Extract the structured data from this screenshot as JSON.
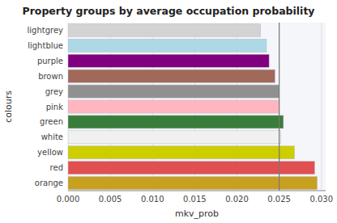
{
  "chart_data": {
    "type": "bar",
    "orientation": "horizontal",
    "title": "Property groups by average occupation probability",
    "xlabel": "mkv_prob",
    "ylabel": "colours",
    "categories": [
      "orange",
      "red",
      "yellow",
      "white",
      "green",
      "pink",
      "grey",
      "brown",
      "purple",
      "lightblue",
      "lightgrey"
    ],
    "values": [
      0.0295,
      0.0292,
      0.0268,
      0.0252,
      0.0255,
      0.025,
      0.025,
      0.0245,
      0.0238,
      0.0235,
      0.0228
    ],
    "colors": [
      "#c8a020",
      "#e05050",
      "#cdcd00",
      "#f0f0f0",
      "#3a7d3a",
      "#ffb6c1",
      "#909090",
      "#a0695a",
      "#800080",
      "#add8e6",
      "#d3d3d3"
    ],
    "reference_line": 0.025,
    "xlim": [
      0.0,
      0.0305
    ],
    "xticks": [
      {
        "value": 0.0,
        "label": "0.000"
      },
      0.005,
      {
        "value": 0.01,
        "label": "0.010"
      },
      0.015,
      {
        "value": 0.02,
        "label": "0.020"
      },
      0.025,
      {
        "value": 0.03,
        "label": "0.030"
      }
    ],
    "grid": true
  }
}
